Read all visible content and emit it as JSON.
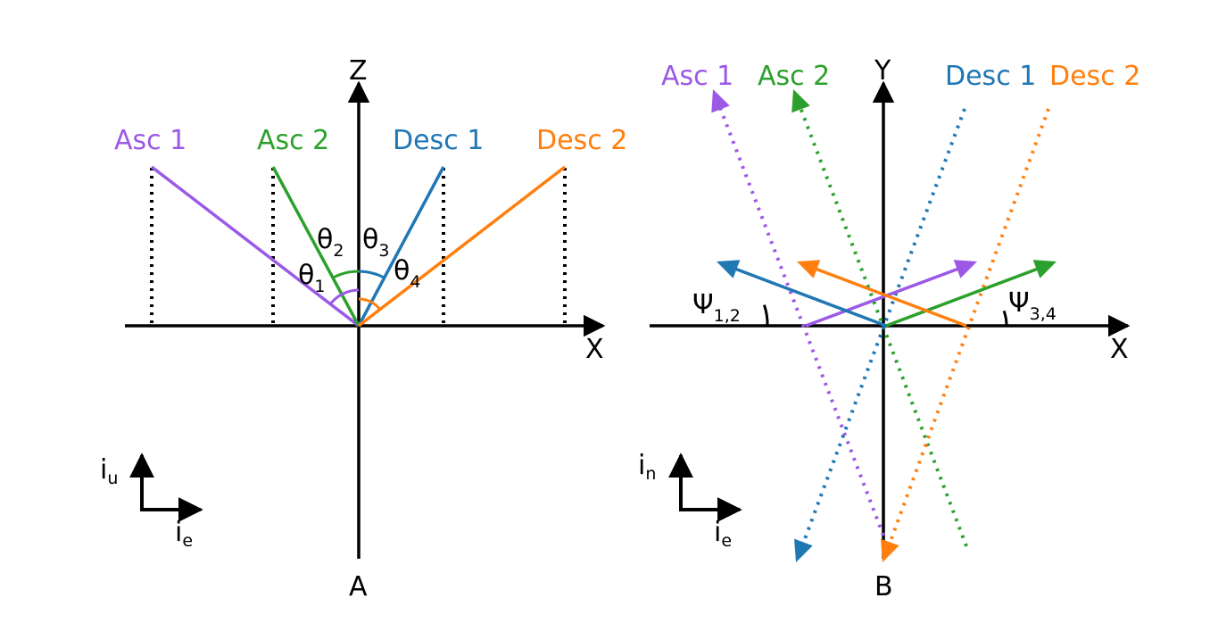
{
  "colors": {
    "asc1": "#9b59e6",
    "asc2": "#2ca02c",
    "desc1": "#1f77b4",
    "desc2": "#ff7f0e",
    "axis": "#000000"
  },
  "left_panel": {
    "axis_x_label": "X",
    "axis_z_label": "Z",
    "bottom_label": "A",
    "lines": [
      {
        "label": "Asc 1",
        "color_key": "asc1"
      },
      {
        "label": "Asc 2",
        "color_key": "asc2"
      },
      {
        "label": "Desc 1",
        "color_key": "desc1"
      },
      {
        "label": "Desc 2",
        "color_key": "desc2"
      }
    ],
    "angles": [
      {
        "symbol": "θ",
        "sub": "1"
      },
      {
        "symbol": "θ",
        "sub": "2"
      },
      {
        "symbol": "θ",
        "sub": "3"
      },
      {
        "symbol": "θ",
        "sub": "4"
      }
    ],
    "unit_vectors": {
      "up": "i",
      "up_sub": "u",
      "right": "i",
      "right_sub": "e"
    }
  },
  "right_panel": {
    "axis_x_label": "X",
    "axis_y_label": "Y",
    "bottom_label": "B",
    "tracks": [
      {
        "label": "Asc 1",
        "color_key": "asc1"
      },
      {
        "label": "Asc 2",
        "color_key": "asc2"
      },
      {
        "label": "Desc 1",
        "color_key": "desc1"
      },
      {
        "label": "Desc 2",
        "color_key": "desc2"
      }
    ],
    "angles": [
      {
        "symbol": "Ψ",
        "sub": "1,2"
      },
      {
        "symbol": "Ψ",
        "sub": "3,4"
      }
    ],
    "unit_vectors": {
      "up": "i",
      "up_sub": "n",
      "right": "i",
      "right_sub": "e"
    }
  }
}
